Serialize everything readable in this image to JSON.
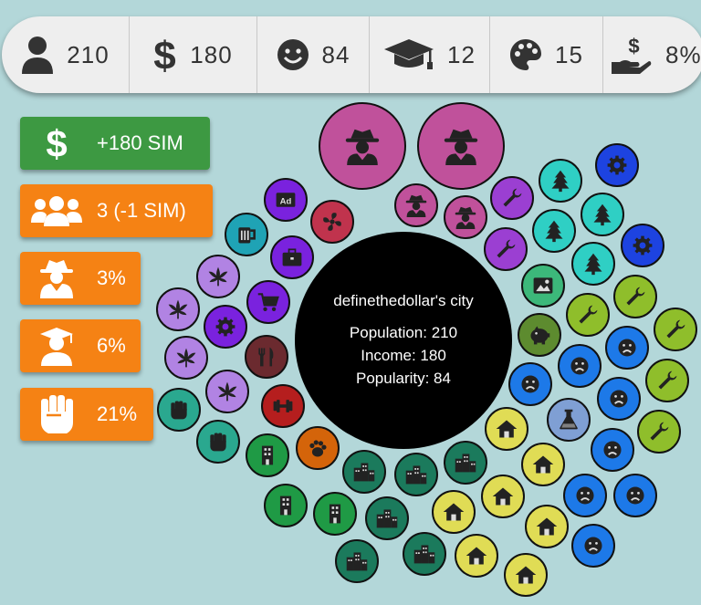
{
  "stats": [
    {
      "icon": "person-icon",
      "value": "210"
    },
    {
      "icon": "dollar-icon",
      "value": "180"
    },
    {
      "icon": "smile-icon",
      "value": "84"
    },
    {
      "icon": "graduation-cap-icon",
      "value": "12"
    },
    {
      "icon": "palette-icon",
      "value": "15"
    },
    {
      "icon": "hand-money-icon",
      "value": "8%"
    }
  ],
  "buttons": [
    {
      "icon": "dollar-icon",
      "label": "+180 SIM",
      "color": "#3d9942"
    },
    {
      "icon": "group-icon",
      "label": "3 (-1 SIM)",
      "color": "#f58214"
    },
    {
      "icon": "spy-icon",
      "label": "3%",
      "color": "#f58214"
    },
    {
      "icon": "graduate-icon",
      "label": "6%",
      "color": "#f58214"
    },
    {
      "icon": "fist-icon",
      "label": "21%",
      "color": "#f58214"
    }
  ],
  "city": {
    "name": "definethedollar's city",
    "population": "Population: 210",
    "income": "Income: 180",
    "popularity": "Popularity: 84"
  },
  "colors": {
    "spy": "#c0519b",
    "wrench": "#9b3fd2",
    "tree": "#2fcfc4",
    "gear": "#1d43e0",
    "lime": "#8fbe2b",
    "blue": "#1d79e8",
    "yellow": "#e0dc55",
    "darkgreen": "#1b7a5c",
    "green": "#1f9a45",
    "lavender": "#b183e3",
    "purple": "#7a22de"
  }
}
